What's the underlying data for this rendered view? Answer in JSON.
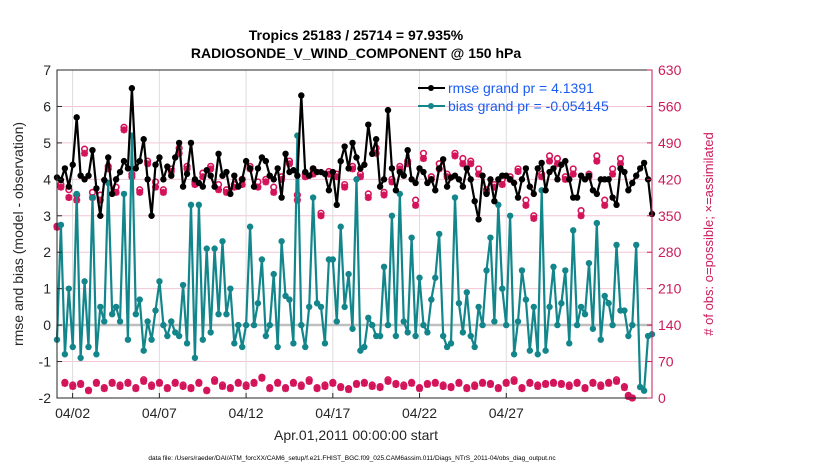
{
  "chart_data": {
    "type": "line",
    "title": "Tropics 25183 / 25714 = 97.935%",
    "subtitle": "RADIOSONDE_V_WIND_COMPONENT @ 150 hPa",
    "xlabel": "Apr.01,2011 00:00:00 start",
    "ylabel": "rmse and bias (model - observation)",
    "ylabel_right": "# of obs: o=possible; ×=assimilated",
    "footnote": "data file: /Users/raeder/DAI/ATM_forcXX/CAM6_setup/f.e21.FHIST_BGC.f09_025.CAM6assim.011/Diags_NTrS_2011-04/obs_diag_output.nc",
    "x_tick_labels": [
      "04/02",
      "04/07",
      "04/12",
      "04/17",
      "04/22",
      "04/27"
    ],
    "x_tick_days": [
      1,
      6,
      11,
      16,
      21,
      26
    ],
    "x_range_days": [
      0.1,
      34.4
    ],
    "y_ticks": [
      "-2",
      "-1",
      "0",
      "1",
      "2",
      "3",
      "4",
      "5",
      "6",
      "7"
    ],
    "ylim": [
      -2,
      7
    ],
    "y_right_ticks": [
      "0",
      "70",
      "140",
      "210",
      "280",
      "350",
      "420",
      "490",
      "560",
      "630"
    ],
    "ylim_right": [
      0,
      630
    ],
    "legend": {
      "placement": "top-right",
      "entries": [
        "rmse grand pr = 4.1391",
        "bias grand pr = -0.054145"
      ]
    },
    "colors": {
      "rmse": "#000000",
      "bias": "#13868b",
      "obs": "#d4145a",
      "legend_text": "#1a5cf0",
      "zero_line": "#bfbfbf"
    },
    "series": [
      {
        "name": "rmse",
        "values": [
          4.05,
          3.98,
          4.3,
          3.8,
          4.4,
          5.7,
          4.1,
          4.0,
          4.1,
          4.8,
          3.75,
          3.0,
          3.98,
          4.6,
          3.6,
          4.0,
          4.2,
          4.5,
          4.3,
          6.5,
          4.3,
          4.5,
          5.1,
          4.0,
          3.0,
          4.4,
          4.6,
          4.0,
          4.35,
          4.1,
          4.6,
          5.0,
          3.8,
          4.15,
          5.0,
          4.0,
          3.9,
          3.8,
          4.25,
          4.1,
          3.8,
          4.7,
          4.1,
          4.2,
          3.6,
          4.1,
          3.8,
          4.0,
          4.5,
          4.3,
          3.8,
          4.3,
          4.6,
          4.5,
          4.1,
          4.0,
          4.3,
          3.5,
          4.7,
          4.2,
          4.25,
          4.1,
          6.3,
          4.2,
          4.1,
          4.3,
          4.2,
          4.2,
          4.15,
          3.7,
          4.2,
          3.3,
          4.5,
          4.9,
          4.3,
          5.0,
          4.6,
          4.3,
          4.4,
          5.5,
          4.7,
          5.1,
          3.8,
          4.0,
          5.9,
          4.3,
          3.7,
          4.2,
          4.1,
          4.8,
          4.0,
          3.9,
          4.3,
          4.2,
          3.9,
          4.0,
          3.7,
          4.3,
          4.55,
          3.8,
          4.05,
          4.1,
          4.0,
          3.8,
          4.3,
          4.0,
          3.4,
          2.9,
          4.1,
          3.6,
          4.0,
          3.4,
          4.0,
          4.1,
          4.1,
          4.0,
          3.9,
          3.5,
          4.0,
          4.3,
          3.8,
          3.6,
          4.3,
          4.45,
          3.7,
          4.2,
          4.3,
          4.0,
          4.4,
          4.5,
          4.0,
          3.5,
          3.5,
          4.1,
          4.0,
          4.1,
          3.7,
          3.6,
          4.0,
          4.0,
          4.0,
          3.5,
          3.3,
          4.3,
          4.2,
          3.7,
          3.9,
          4.1,
          4.3,
          4.45,
          4.0,
          3.05
        ]
      },
      {
        "name": "bias",
        "values": [
          -0.4,
          2.75,
          -0.8,
          1.0,
          -0.6,
          3.6,
          -0.9,
          1.2,
          -0.6,
          3.5,
          -0.8,
          0.5,
          0.1,
          3.9,
          0.3,
          0.5,
          0.1,
          3.6,
          -0.4,
          5.2,
          0.3,
          0.7,
          -0.7,
          0.1,
          -0.4,
          0.4,
          1.2,
          0.0,
          -0.3,
          0.1,
          -0.2,
          -0.3,
          1.1,
          -0.5,
          3.3,
          -0.9,
          3.3,
          -0.4,
          2.1,
          -0.2,
          2.1,
          0.3,
          2.3,
          0.3,
          1.0,
          -0.5,
          0.0,
          -0.6,
          0.0,
          2.7,
          0.0,
          0.6,
          1.8,
          -0.3,
          0.0,
          1.4,
          -0.6,
          2.3,
          0.8,
          0.7,
          -0.5,
          5.2,
          0.0,
          -0.6,
          0.5,
          3.5,
          0.6,
          0.5,
          -0.5,
          1.8,
          1.8,
          0.1,
          2.7,
          0.5,
          1.4,
          -0.1,
          4.0,
          -0.7,
          -0.6,
          0.2,
          0.0,
          -0.3,
          -0.3,
          1.6,
          0.0,
          3.0,
          -0.3,
          3.6,
          0.1,
          -0.2,
          2.4,
          -0.3,
          1.3,
          0.0,
          -0.2,
          0.7,
          1.3,
          2.5,
          -0.3,
          -0.6,
          -0.5,
          3.5,
          0.6,
          -0.2,
          0.9,
          -0.3,
          -0.6,
          0.5,
          0.0,
          1.5,
          2.4,
          0.1,
          3.3,
          1.0,
          0.0,
          3.0,
          -0.8,
          0.1,
          1.5,
          0.7,
          -0.7,
          0.5,
          -0.8,
          3.7,
          -0.7,
          0.5,
          1.6,
          0.0,
          0.6,
          1.5,
          -0.5,
          2.6,
          0.0,
          0.5,
          0.3,
          1.7,
          -0.1,
          2.8,
          -0.4,
          0.8,
          0.6,
          0.0,
          2.2,
          0.4,
          0.4,
          -0.3,
          0.0,
          2.2,
          -1.7,
          -1.8,
          -0.3,
          -0.25
        ]
      },
      {
        "name": "obs_possible",
        "values": [
          330,
          410,
          30,
          400,
          25,
          390,
          28,
          478,
          15,
          395,
          30,
          390,
          20,
          445,
          30,
          405,
          25,
          520,
          30,
          430,
          20,
          400,
          35,
          455,
          25,
          415,
          30,
          400,
          20,
          440,
          30,
          480,
          25,
          445,
          20,
          415,
          30,
          432,
          15,
          445,
          35,
          410,
          25,
          400,
          20,
          410,
          30,
          420,
          25,
          445,
          30,
          415,
          40,
          420,
          20,
          405,
          30,
          425,
          20,
          455,
          30,
          390,
          25,
          430,
          35,
          440,
          20,
          355,
          25,
          435,
          30,
          430,
          22,
          410,
          18,
          445,
          28,
          430,
          30,
          392,
          25,
          480,
          22,
          395,
          35,
          420,
          28,
          445,
          25,
          455,
          30,
          380,
          20,
          470,
          28,
          425,
          30,
          450,
          25,
          430,
          22,
          470,
          30,
          460,
          20,
          455,
          25,
          440,
          30,
          400,
          28,
          410,
          20,
          420,
          30,
          425,
          35,
          440,
          20,
          380,
          30,
          350,
          25,
          430,
          28,
          465,
          30,
          460,
          28,
          425,
          25,
          440,
          30,
          360,
          20,
          430,
          30,
          465,
          25,
          380,
          30,
          440,
          35,
          460,
          22,
          5,
          0
        ]
      },
      {
        "name": "obs_assimilated",
        "values": [
          328,
          405,
          28,
          385,
          22,
          380,
          26,
          470,
          14,
          385,
          28,
          380,
          18,
          440,
          28,
          395,
          22,
          515,
          28,
          425,
          18,
          395,
          32,
          450,
          22,
          405,
          28,
          395,
          18,
          435,
          28,
          470,
          22,
          440,
          18,
          410,
          28,
          425,
          14,
          440,
          32,
          400,
          22,
          395,
          18,
          405,
          28,
          410,
          22,
          440,
          28,
          405,
          38,
          415,
          18,
          395,
          28,
          420,
          18,
          450,
          28,
          380,
          22,
          425,
          32,
          430,
          18,
          350,
          22,
          430,
          28,
          425,
          20,
          405,
          16,
          440,
          26,
          425,
          28,
          385,
          22,
          470,
          20,
          390,
          32,
          415,
          26,
          440,
          22,
          450,
          28,
          370,
          18,
          460,
          26,
          420,
          28,
          440,
          22,
          425,
          20,
          465,
          28,
          450,
          18,
          450,
          22,
          430,
          28,
          395,
          26,
          405,
          18,
          410,
          28,
          420,
          32,
          435,
          18,
          370,
          28,
          345,
          22,
          425,
          26,
          455,
          28,
          450,
          26,
          420,
          22,
          430,
          28,
          350,
          18,
          425,
          28,
          455,
          22,
          370,
          28,
          430,
          32,
          450,
          20,
          3,
          0
        ]
      }
    ]
  }
}
